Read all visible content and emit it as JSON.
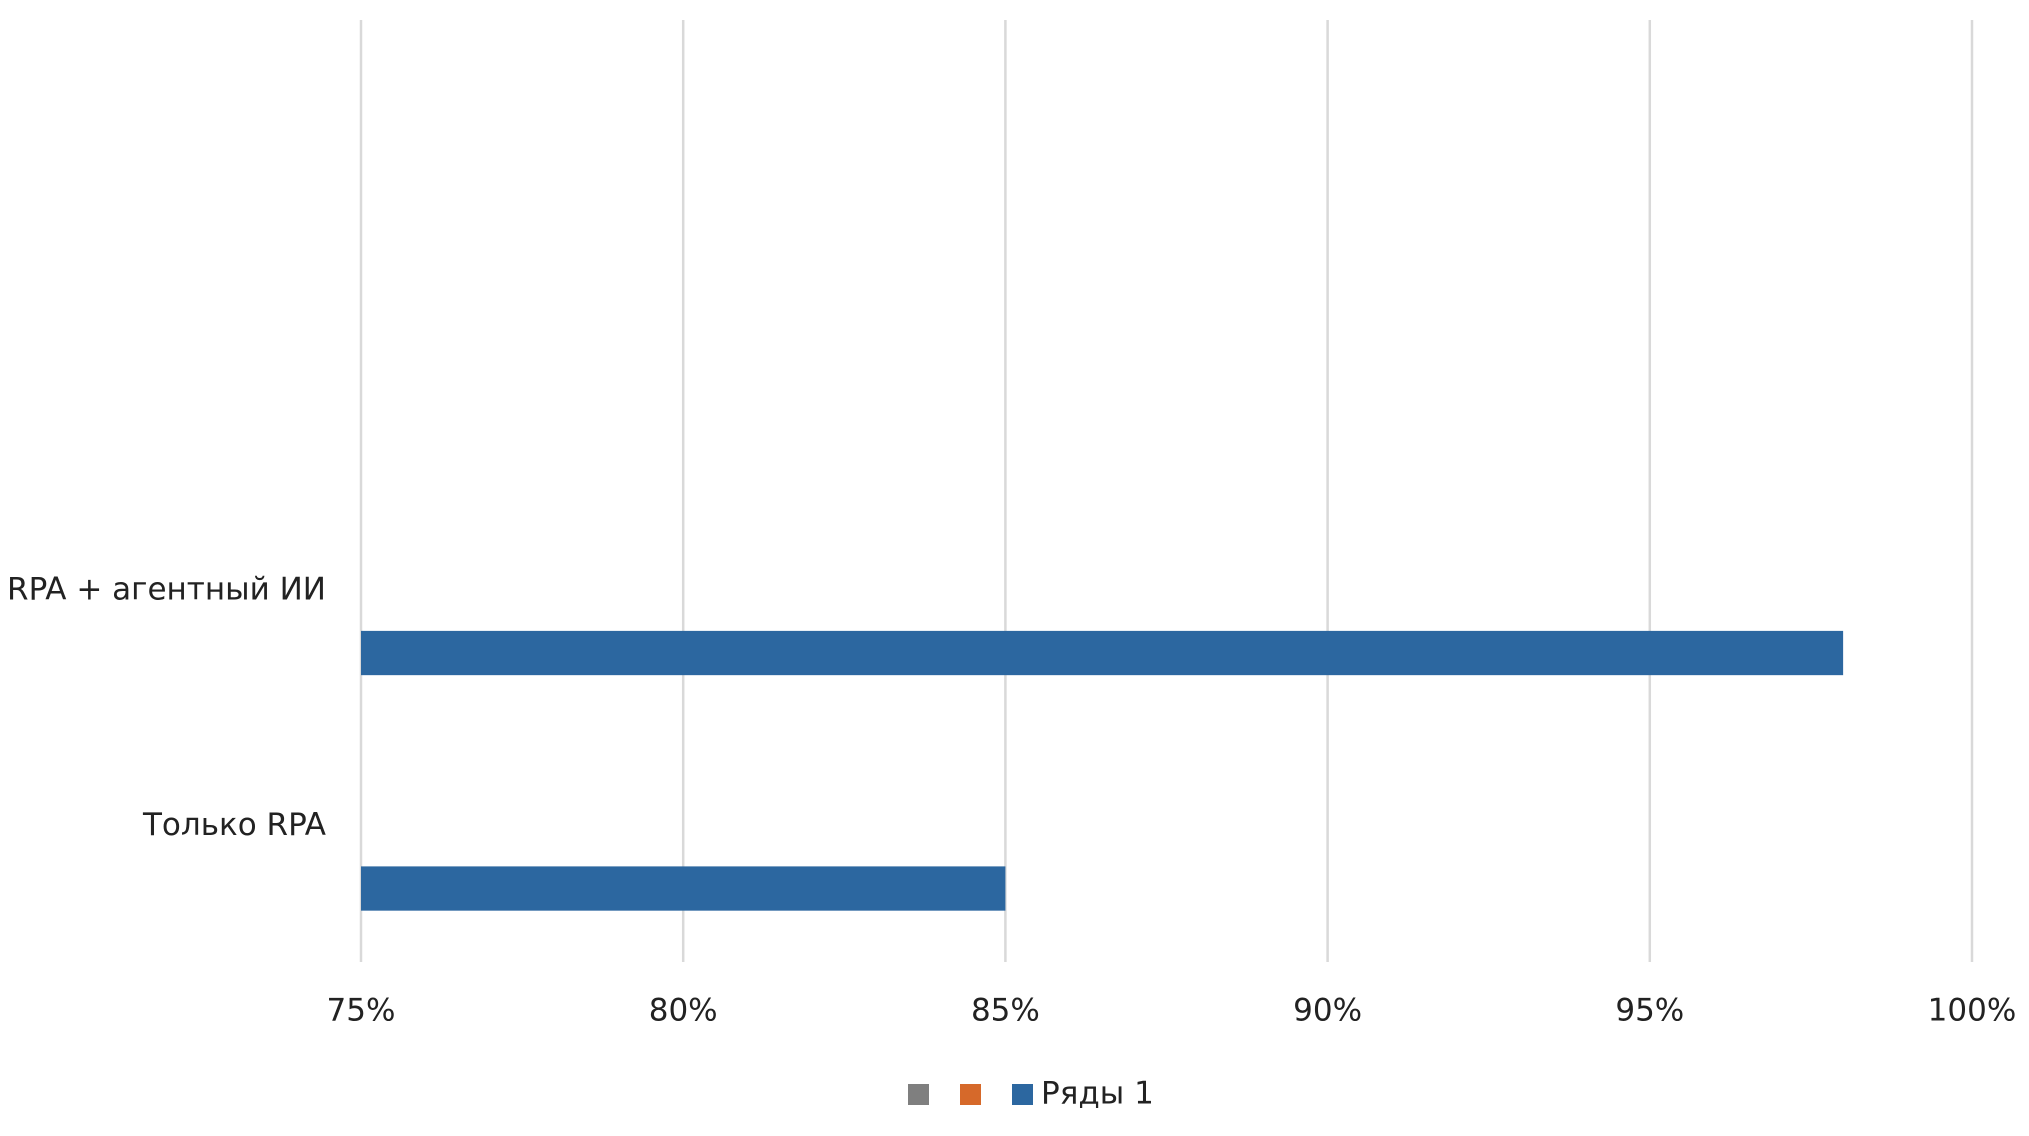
{
  "chart_data": {
    "type": "bar",
    "orientation": "horizontal",
    "categories": [
      "Только RPA",
      "RPA + агентный ИИ",
      null,
      null
    ],
    "series": [
      {
        "name": null,
        "color": "#7f7f7f",
        "values": [
          null,
          null,
          null,
          null
        ]
      },
      {
        "name": null,
        "color": "#d6692a",
        "values": [
          null,
          null,
          null,
          null
        ]
      },
      {
        "name": "Ряды 1",
        "color": "#2c67a0",
        "values": [
          85,
          98,
          null,
          null
        ]
      }
    ],
    "xlim": [
      75,
      100
    ],
    "xticks": [
      {
        "value": 75,
        "label": "75%"
      },
      {
        "value": 80,
        "label": "80%"
      },
      {
        "value": 85,
        "label": "85%"
      },
      {
        "value": 90,
        "label": "90%"
      },
      {
        "value": 95,
        "label": "95%"
      },
      {
        "value": 100,
        "label": "100%"
      }
    ],
    "grid": true,
    "legend": "bottom"
  }
}
